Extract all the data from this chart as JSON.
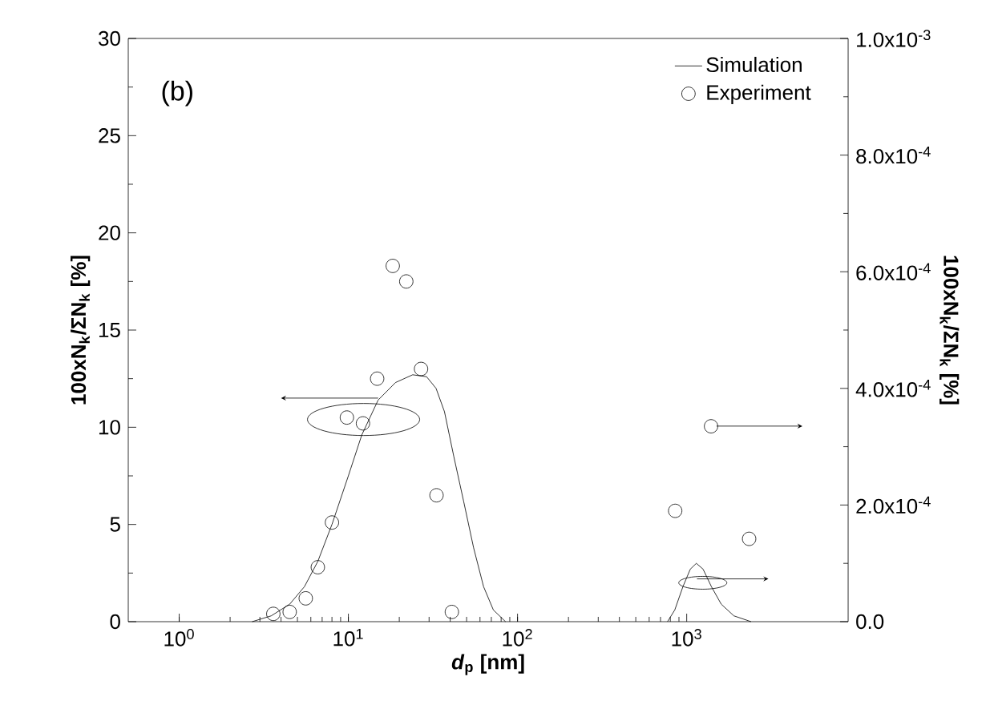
{
  "chart_data": {
    "type": "line",
    "xlabel": "*d*$_{p}$ [nm]",
    "ylabel": "100xN$_{k}$/ΣN$_{k}$ [%]",
    "y2label": "100xN$_{k}$/ΣN$_{k}$ [%]",
    "annotations": [
      "(b)"
    ],
    "log": "x",
    "grid": false,
    "legend": "top right",
    "xlim": [
      0.5,
      9000
    ],
    "xticks": [
      {
        "value": 1,
        "label": "10$^{0}$"
      },
      {
        "value": 10,
        "label": "10$^{1}$"
      },
      {
        "value": 100,
        "label": "10$^{2}$"
      },
      {
        "value": 1000,
        "label": "10$^{3}$"
      }
    ],
    "ylim": [
      0,
      30
    ],
    "yticks": [
      0,
      5,
      10,
      15,
      20,
      25,
      30
    ],
    "y2lim": [
      0,
      0.001
    ],
    "y2ticks": [
      {
        "value": 0,
        "label": "0.0"
      },
      {
        "value": 0.0002,
        "label": "2.0x10$^{-4}$"
      },
      {
        "value": 0.0004,
        "label": "4.0x10$^{-4}$"
      },
      {
        "value": 0.0006,
        "label": "6.0x10$^{-4}$"
      },
      {
        "value": 0.0008,
        "label": "8.0x10$^{-4}$"
      },
      {
        "value": 0.001,
        "label": "1.0x10$^{-3}$"
      }
    ],
    "series": [
      {
        "name": "Simulation",
        "marker": "none",
        "color": "#000000",
        "x": [
          2.7,
          3.5,
          4.5,
          5.5,
          6.6,
          8,
          10,
          12,
          15,
          19,
          24,
          29,
          33,
          37,
          42,
          48,
          55,
          63,
          72,
          85
        ],
        "values": [
          0,
          0.3,
          0.9,
          1.8,
          3.1,
          5.0,
          7.5,
          9.6,
          11.4,
          12.3,
          12.7,
          12.6,
          12.0,
          10.8,
          8.5,
          6.2,
          3.8,
          1.8,
          0.6,
          0
        ]
      },
      {
        "name": "Experiment",
        "type": "scatter",
        "marker": "circle",
        "color": "#000000",
        "x": [
          3.6,
          4.5,
          5.6,
          6.6,
          8.0,
          9.8,
          12.2,
          14.8,
          18.3,
          22,
          26.9,
          33.2,
          40.9
        ],
        "values": [
          0.4,
          0.5,
          1.2,
          2.8,
          5.1,
          10.5,
          10.2,
          12.5,
          18.3,
          17.5,
          13.0,
          6.5,
          0.5
        ]
      },
      {
        "axis": "y2",
        "marker": "none",
        "color": "#000000",
        "x": [
          770,
          850,
          950,
          1050,
          1140,
          1250,
          1400,
          1600,
          1900,
          2400
        ],
        "values": [
          0,
          2e-05,
          6e-05,
          9e-05,
          0.0001,
          9e-05,
          6e-05,
          3e-05,
          1e-05,
          0
        ]
      },
      {
        "type": "scatter",
        "axis": "y2",
        "marker": "circle",
        "color": "#000000",
        "x": [
          855,
          1393,
          2339
        ],
        "values": [
          0.00019,
          0.000335,
          0.000142
        ]
      }
    ]
  }
}
